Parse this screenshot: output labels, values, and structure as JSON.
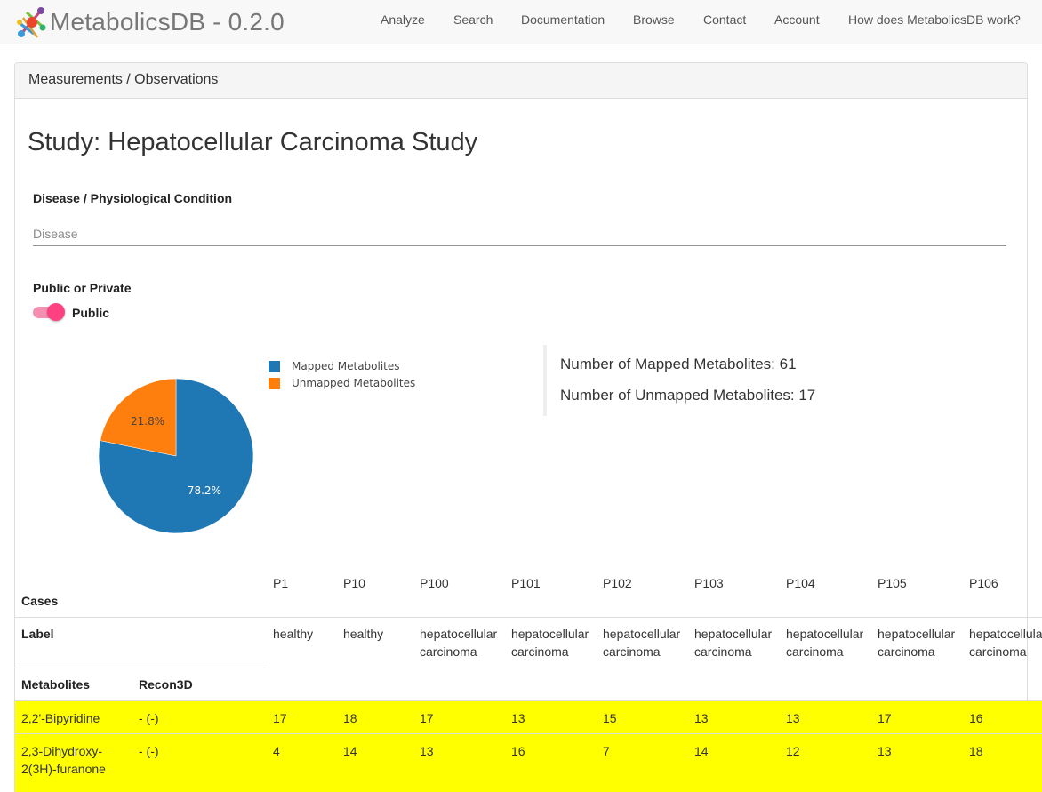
{
  "brand": {
    "title": "MetabolicsDB - 0.2.0"
  },
  "nav": [
    {
      "label": "Analyze"
    },
    {
      "label": "Search"
    },
    {
      "label": "Documentation"
    },
    {
      "label": "Browse"
    },
    {
      "label": "Contact"
    },
    {
      "label": "Account"
    },
    {
      "label": "How does MetabolicsDB work?"
    }
  ],
  "panel": {
    "heading": "Measurements / Observations"
  },
  "study": {
    "title": "Study: Hepatocellular Carcinoma Study"
  },
  "disease": {
    "label": "Disease / Physiological Condition",
    "placeholder": "Disease",
    "value": ""
  },
  "privacy": {
    "label": "Public or Private",
    "toggle_label": "Public",
    "on": true
  },
  "colors": {
    "mapped": "#1f77b4",
    "unmapped": "#ff7f0e",
    "highlight": "#ffff00",
    "toggle": "#ff4081"
  },
  "chart_data": {
    "type": "pie",
    "categories": [
      "Mapped Metabolites",
      "Unmapped Metabolites"
    ],
    "values": [
      78.2,
      21.8
    ],
    "labels": [
      "78.2%",
      "21.8%"
    ],
    "legend": "right"
  },
  "counts": {
    "mapped": "Number of Mapped Metabolites: 61",
    "unmapped": "Number of Unmapped Metabolites: 17"
  },
  "table": {
    "cases_header": "Cases",
    "label_header": "Label",
    "metabolites_header": "Metabolites",
    "recon_header": "Recon3D",
    "patients": [
      {
        "id": "P1",
        "label": [
          "healthy"
        ]
      },
      {
        "id": "P10",
        "label": [
          "healthy"
        ]
      },
      {
        "id": "P100",
        "label": [
          "hepatocellular",
          "carcinoma"
        ]
      },
      {
        "id": "P101",
        "label": [
          "hepatocellular",
          "carcinoma"
        ]
      },
      {
        "id": "P102",
        "label": [
          "hepatocellular",
          "carcinoma"
        ]
      },
      {
        "id": "P103",
        "label": [
          "hepatocellular",
          "carcinoma"
        ]
      },
      {
        "id": "P104",
        "label": [
          "hepatocellular",
          "carcinoma"
        ]
      },
      {
        "id": "P105",
        "label": [
          "hepatocellular",
          "carcinoma"
        ]
      },
      {
        "id": "P106",
        "label": [
          "hepatocellular",
          "carcinoma"
        ]
      }
    ],
    "rows": [
      {
        "name": [
          "2,2'-Bipyridine"
        ],
        "recon": "- (-)",
        "values": [
          "17",
          "18",
          "17",
          "13",
          "15",
          "13",
          "13",
          "17",
          "16"
        ]
      },
      {
        "name": [
          "2,3-Dihydroxy-",
          "2(3H)-furanone"
        ],
        "recon": "- (-)",
        "values": [
          "4",
          "14",
          "13",
          "16",
          "7",
          "14",
          "12",
          "13",
          "18"
        ]
      }
    ]
  }
}
